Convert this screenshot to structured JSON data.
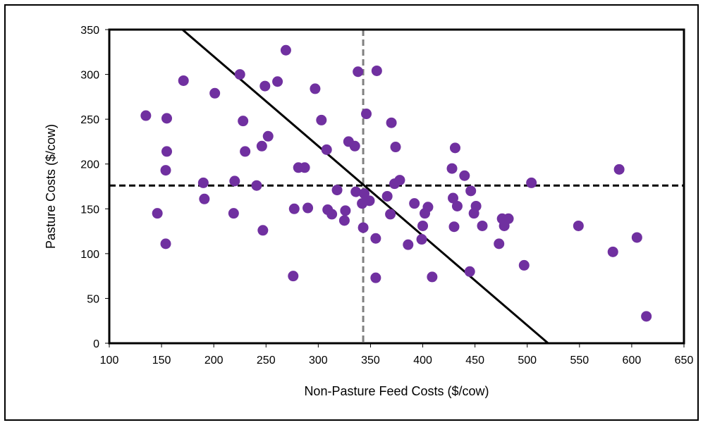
{
  "chart_data": {
    "type": "scatter",
    "xlabel": "Non-Pasture Feed Costs ($/cow)",
    "ylabel": "Pasture Costs ($/cow)",
    "xlim": [
      100,
      650
    ],
    "ylim": [
      0,
      350
    ],
    "xticks": [
      100,
      150,
      200,
      250,
      300,
      350,
      400,
      450,
      500,
      550,
      600,
      650
    ],
    "yticks": [
      0,
      50,
      100,
      150,
      200,
      250,
      300,
      350
    ],
    "grid": false,
    "marker_color": "#7030A0",
    "series": [
      {
        "points": [
          [
            135,
            254
          ],
          [
            146,
            145
          ],
          [
            154,
            111
          ],
          [
            154,
            193
          ],
          [
            155,
            214
          ],
          [
            155,
            251
          ],
          [
            171,
            293
          ],
          [
            190,
            179
          ],
          [
            191,
            161
          ],
          [
            201,
            279
          ],
          [
            219,
            145
          ],
          [
            220,
            181
          ],
          [
            225,
            300
          ],
          [
            228,
            248
          ],
          [
            230,
            214
          ],
          [
            241,
            176
          ],
          [
            246,
            220
          ],
          [
            247,
            126
          ],
          [
            249,
            287
          ],
          [
            252,
            231
          ],
          [
            261,
            292
          ],
          [
            269,
            327
          ],
          [
            276,
            75
          ],
          [
            277,
            150
          ],
          [
            281,
            196
          ],
          [
            287,
            196
          ],
          [
            290,
            151
          ],
          [
            297,
            284
          ],
          [
            303,
            249
          ],
          [
            308,
            216
          ],
          [
            309,
            149
          ],
          [
            313,
            144
          ],
          [
            318,
            171
          ],
          [
            325,
            137
          ],
          [
            326,
            148
          ],
          [
            329,
            225
          ],
          [
            335,
            220
          ],
          [
            336,
            169
          ],
          [
            338,
            303
          ],
          [
            342,
            156
          ],
          [
            343,
            129
          ],
          [
            344,
            167
          ],
          [
            346,
            256
          ],
          [
            349,
            159
          ],
          [
            355,
            117
          ],
          [
            355,
            73
          ],
          [
            356,
            304
          ],
          [
            366,
            164
          ],
          [
            369,
            144
          ],
          [
            370,
            246
          ],
          [
            373,
            178
          ],
          [
            374,
            219
          ],
          [
            378,
            182
          ],
          [
            386,
            110
          ],
          [
            392,
            156
          ],
          [
            399,
            116
          ],
          [
            400,
            131
          ],
          [
            402,
            145
          ],
          [
            405,
            152
          ],
          [
            409,
            74
          ],
          [
            428,
            195
          ],
          [
            429,
            162
          ],
          [
            430,
            130
          ],
          [
            431,
            218
          ],
          [
            433,
            153
          ],
          [
            440,
            187
          ],
          [
            445,
            80
          ],
          [
            446,
            170
          ],
          [
            449,
            145
          ],
          [
            451,
            153
          ],
          [
            457,
            131
          ],
          [
            473,
            111
          ],
          [
            476,
            139
          ],
          [
            478,
            131
          ],
          [
            482,
            139
          ],
          [
            497,
            87
          ],
          [
            504,
            179
          ],
          [
            549,
            131
          ],
          [
            582,
            102
          ],
          [
            588,
            194
          ],
          [
            605,
            118
          ],
          [
            614,
            30
          ]
        ]
      }
    ],
    "reference_lines": [
      {
        "kind": "horizontal",
        "y": 176,
        "style": "dashed",
        "color": "#000000"
      },
      {
        "kind": "vertical",
        "x": 343,
        "style": "dashed",
        "color": "#808080"
      },
      {
        "kind": "line",
        "from": [
          170,
          350
        ],
        "to": [
          520,
          0
        ],
        "style": "solid",
        "color": "#000000"
      }
    ]
  }
}
